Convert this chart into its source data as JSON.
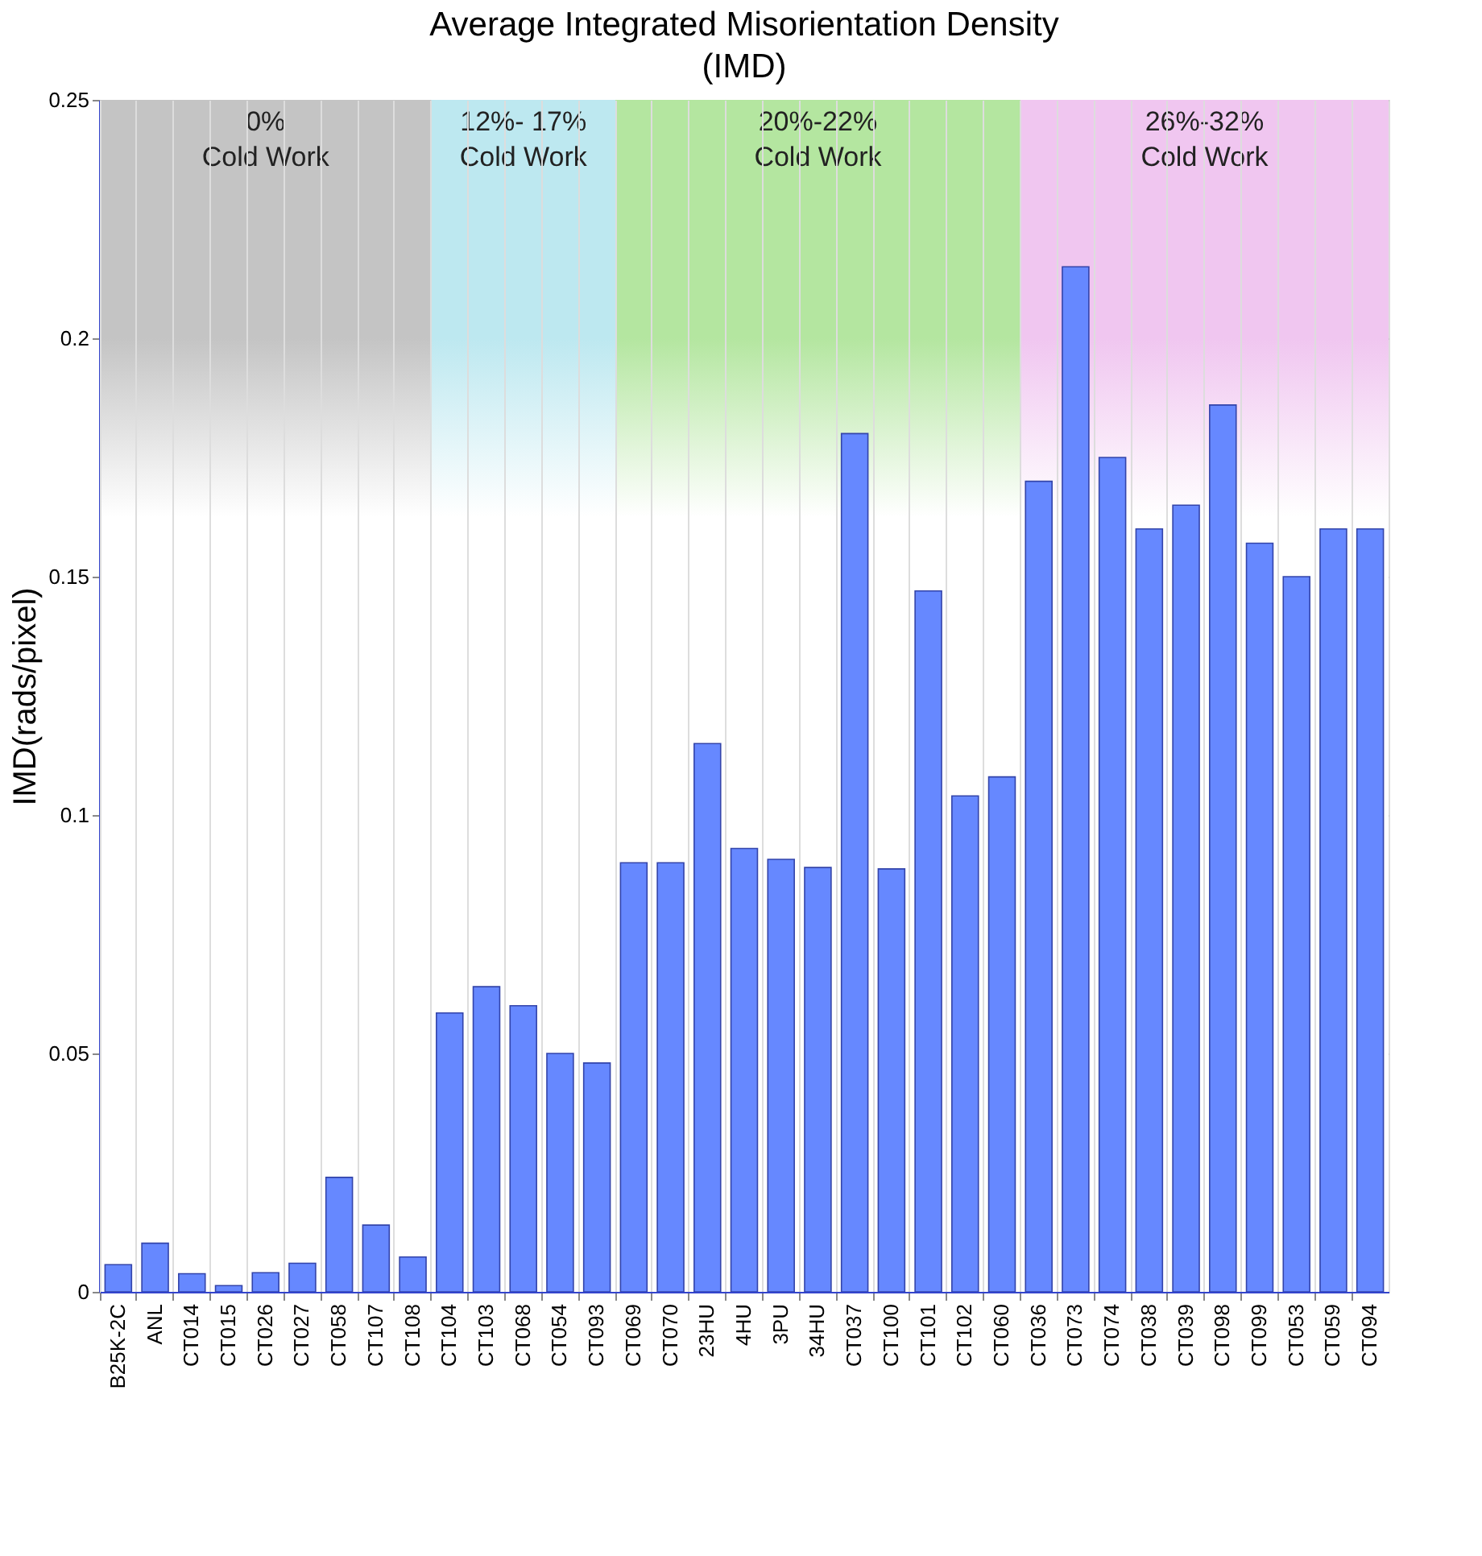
{
  "chart_data": {
    "type": "bar",
    "title": "Average Integrated Misorientation Density (IMD)",
    "ylabel": "IMD(rads/pixel)",
    "categories": [
      "B25K-2C",
      "ANL",
      "CT014",
      "CT015",
      "CT026",
      "CT027",
      "CT058",
      "CT107",
      "CT108",
      "CT104",
      "CT103",
      "CT068",
      "CT054",
      "CT093",
      "CT069",
      "CT070",
      "23HU",
      "4HU",
      "3PU",
      "34HU",
      "CT037",
      "CT100",
      "CT101",
      "CT102",
      "CT060",
      "CT036",
      "CT073",
      "CT074",
      "CT038",
      "CT039",
      "CT098",
      "CT099",
      "CT053",
      "CT059",
      "CT094"
    ],
    "values": [
      0.0057,
      0.0102,
      0.0038,
      0.0013,
      0.004,
      0.006,
      0.024,
      0.014,
      0.0073,
      0.0585,
      0.064,
      0.06,
      0.05,
      0.048,
      0.09,
      0.09,
      0.115,
      0.093,
      0.0907,
      0.089,
      0.18,
      0.0887,
      0.147,
      0.104,
      0.108,
      0.17,
      0.215,
      0.175,
      0.16,
      0.165,
      0.186,
      0.157,
      0.15,
      0.16,
      0.16
    ],
    "color": "#6688ff",
    "ylim": [
      0,
      0.25
    ],
    "yticks": [
      0,
      0.05,
      0.1,
      0.15,
      0.2,
      0.25
    ],
    "grid": true,
    "bands": [
      {
        "axis": "x",
        "from": "B25K-2C",
        "to": "CT108",
        "label": "0%\nCold Work",
        "color": "#c4c4c4"
      },
      {
        "axis": "x",
        "from": "CT104",
        "to": "CT093",
        "label": "12%- 17%\nCold Work",
        "color": "#bde8f0"
      },
      {
        "axis": "x",
        "from": "CT069",
        "to": "CT060",
        "label": "20%-22%\nCold Work",
        "color": "#b4e6a0"
      },
      {
        "axis": "x",
        "from": "CT036",
        "to": "CT094",
        "label": "26%-32%\nCold Work",
        "color": "#f0c6f0"
      }
    ]
  }
}
